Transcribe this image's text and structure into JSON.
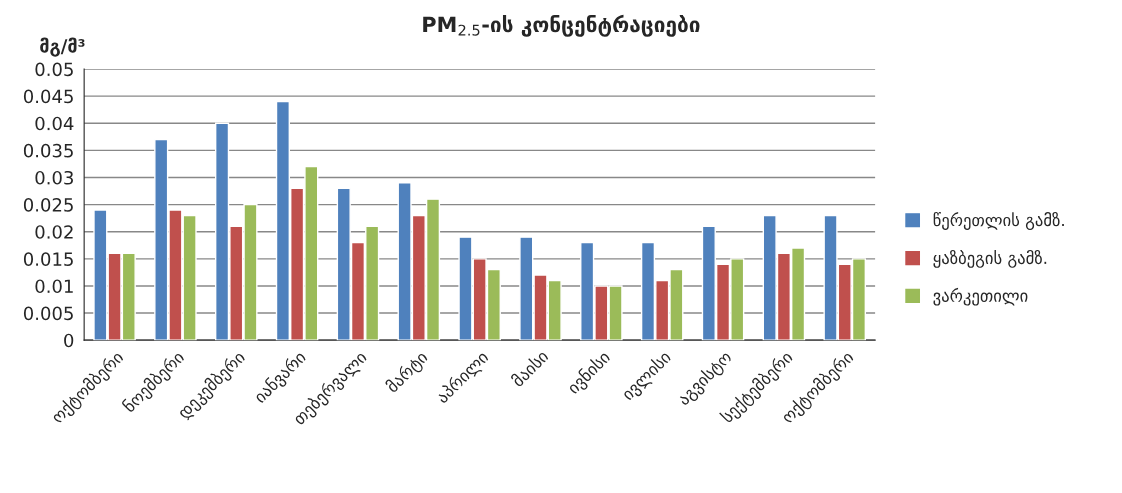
{
  "chart_data": {
    "type": "bar",
    "title": "PM$_{2.5}$-ის კონცენტრაციები",
    "ylabel": "მგ/მ³",
    "categories": [
      "ოქტომბერი",
      "ნოემბერი",
      "დეკემბერი",
      "იანვარი",
      "თებერვალი",
      "მარტი",
      "აპრილი",
      "მაისი",
      "ივნისი",
      "ივლისი",
      "აგვისტო",
      "სექტემბერი",
      "ოქტომბერი"
    ],
    "series": [
      {
        "name": "წერეთლის გამზ.",
        "color": "#4f81bd",
        "values": [
          0.024,
          0.037,
          0.04,
          0.044,
          0.028,
          0.029,
          0.019,
          0.019,
          0.018,
          0.018,
          0.021,
          0.023,
          0.023
        ]
      },
      {
        "name": "ყაზბეგის გამზ.",
        "color": "#c0504d",
        "values": [
          0.016,
          0.024,
          0.021,
          0.028,
          0.018,
          0.023,
          0.015,
          0.012,
          0.01,
          0.011,
          0.014,
          0.016,
          0.014
        ]
      },
      {
        "name": "ვარკეთილი",
        "color": "#9bbb59",
        "values": [
          0.016,
          0.023,
          0.025,
          0.032,
          0.021,
          0.026,
          0.013,
          0.011,
          0.01,
          0.013,
          0.015,
          0.017,
          0.015
        ]
      }
    ],
    "ylim": [
      0,
      0.05
    ],
    "yticks": [
      0,
      0.005,
      0.01,
      0.015,
      0.02,
      0.025,
      0.03,
      0.035,
      0.04,
      0.045,
      0.05
    ],
    "grid": "y",
    "legend": "right"
  }
}
